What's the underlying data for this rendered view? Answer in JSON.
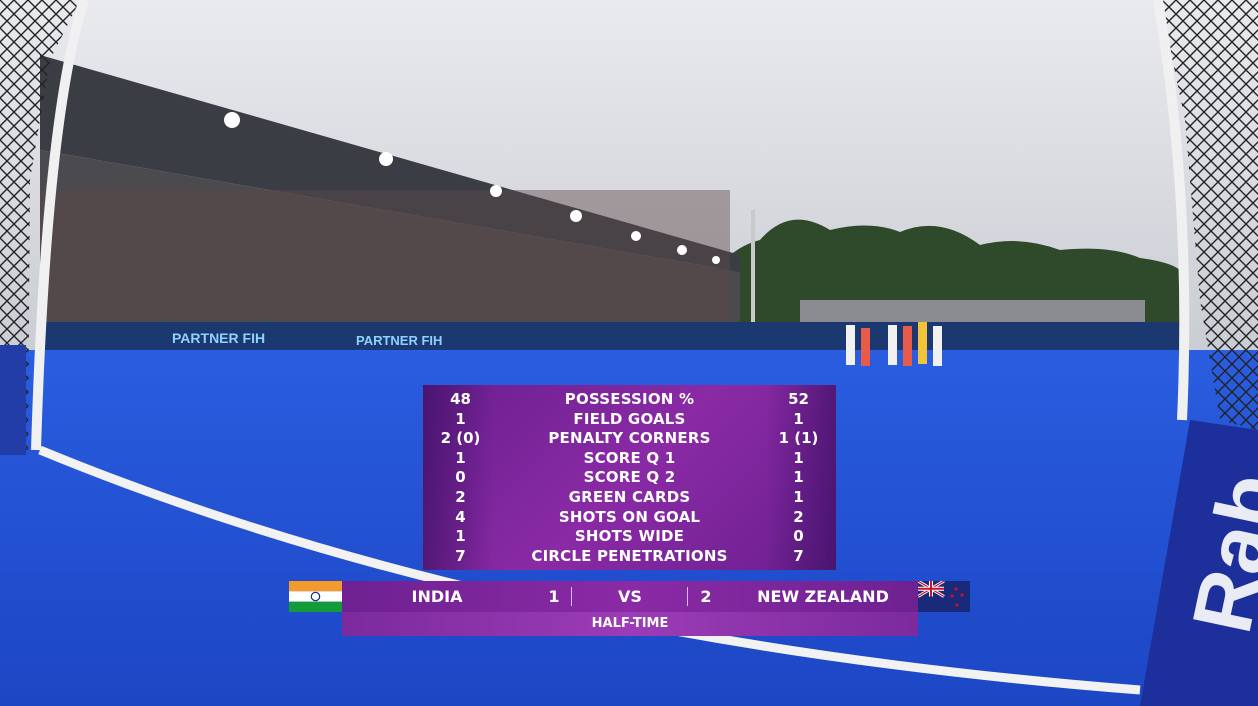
{
  "colors": {
    "pitch": "#1f4fd6",
    "overlay": "#7a26a0",
    "accent": "#f0f0f0"
  },
  "scene": {
    "banner_left": "PARTNER FIH",
    "banner_mid": "PARTNER FIH",
    "board_right": "Rab"
  },
  "stats": {
    "rows": [
      {
        "left": "48",
        "label": "POSSESSION %",
        "right": "52"
      },
      {
        "left": "1",
        "label": "FIELD GOALS",
        "right": "1"
      },
      {
        "left": "2 (0)",
        "label": "PENALTY CORNERS",
        "right": "1 (1)"
      },
      {
        "left": "1",
        "label": "SCORE Q 1",
        "right": "1"
      },
      {
        "left": "0",
        "label": "SCORE Q 2",
        "right": "1"
      },
      {
        "left": "2",
        "label": "GREEN CARDS",
        "right": "1"
      },
      {
        "left": "4",
        "label": "SHOTS ON GOAL",
        "right": "2"
      },
      {
        "left": "1",
        "label": "SHOTS WIDE",
        "right": "0"
      },
      {
        "left": "7",
        "label": "CIRCLE PENETRATIONS",
        "right": "7"
      }
    ]
  },
  "scoreboard": {
    "home_team": "INDIA",
    "home_score": "1",
    "vs": "VS",
    "away_score": "2",
    "away_team": "NEW ZEALAND",
    "status": "HALF-TIME"
  }
}
